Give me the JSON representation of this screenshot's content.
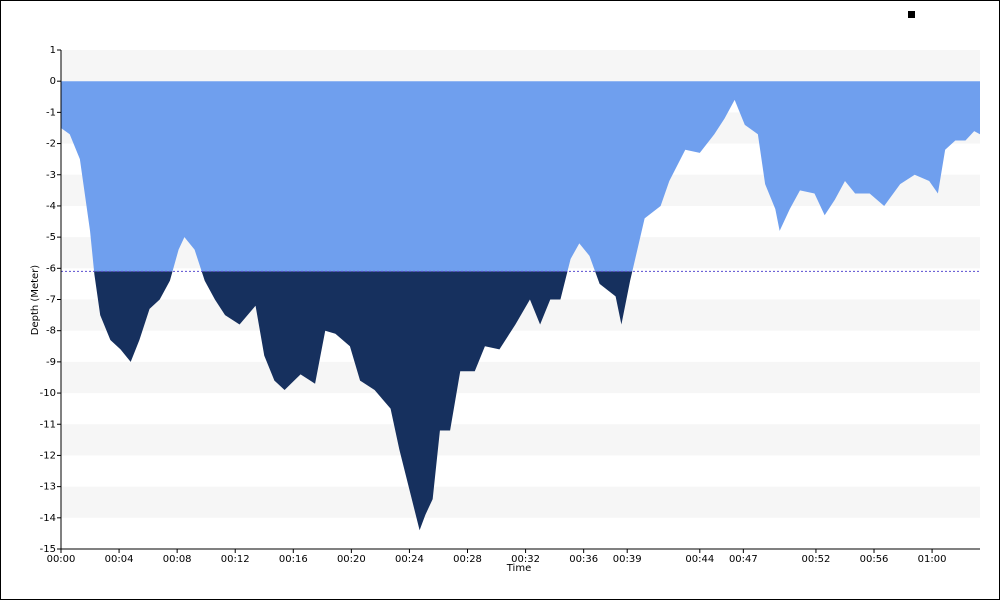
{
  "chart_data": {
    "type": "area",
    "x_label": "Time",
    "y_label": "Depth (Meter)",
    "x": [
      0,
      0.6,
      1.3,
      2.0,
      2.3,
      2.7,
      3.4,
      4.1,
      4.8,
      5.4,
      6.1,
      6.8,
      7.5,
      8.1,
      8.5,
      9.2,
      9.9,
      10.6,
      11.3,
      12.3,
      13.4,
      14.0,
      14.7,
      15.4,
      16.5,
      17.5,
      18.2,
      18.9,
      19.9,
      20.6,
      21.6,
      22.7,
      23.3,
      24.0,
      24.7,
      25.1,
      25.6,
      26.1,
      26.8,
      27.5,
      28.5,
      29.2,
      30.2,
      31.3,
      32.3,
      33.0,
      33.7,
      34.4,
      35.1,
      35.7,
      36.4,
      37.1,
      38.2,
      38.6,
      39.2,
      40.2,
      41.3,
      41.9,
      43.0,
      44.0,
      45.0,
      45.7,
      46.4,
      47.1,
      48.0,
      48.5,
      49.2,
      49.5,
      50.2,
      50.9,
      51.9,
      52.6,
      53.3,
      54.0,
      54.7,
      55.7,
      56.7,
      57.8,
      58.8,
      59.8,
      60.4,
      60.9,
      61.6,
      62.3,
      62.9,
      63.3
    ],
    "y": [
      -1.5,
      -1.7,
      -2.5,
      -4.8,
      -6.2,
      -7.5,
      -8.3,
      -8.6,
      -9.0,
      -8.3,
      -7.3,
      -7.0,
      -6.4,
      -5.4,
      -5.0,
      -5.4,
      -6.4,
      -7.0,
      -7.5,
      -7.8,
      -7.2,
      -8.8,
      -9.6,
      -9.9,
      -9.4,
      -9.7,
      -8.0,
      -8.1,
      -8.5,
      -9.6,
      -9.9,
      -10.5,
      -11.8,
      -13.1,
      -14.4,
      -13.9,
      -13.4,
      -11.2,
      -11.2,
      -9.3,
      -9.3,
      -8.5,
      -8.6,
      -7.8,
      -7.0,
      -7.8,
      -7.0,
      -7.0,
      -5.7,
      -5.2,
      -5.6,
      -6.5,
      -6.9,
      -7.8,
      -6.4,
      -4.4,
      -4.0,
      -3.2,
      -2.2,
      -2.3,
      -1.7,
      -1.2,
      -0.6,
      -1.4,
      -1.7,
      -3.3,
      -4.1,
      -4.8,
      -4.1,
      -3.5,
      -3.6,
      -4.3,
      -3.8,
      -3.2,
      -3.6,
      -3.6,
      -4.0,
      -3.3,
      -3.0,
      -3.2,
      -3.6,
      -2.2,
      -1.9,
      -1.9,
      -1.6,
      -1.7
    ],
    "reference_line": -6.1,
    "colors": {
      "shallow": "#6f9fee",
      "deep": "#16305e",
      "reference": "#5b4fd0"
    },
    "xlim": [
      0,
      63.3
    ],
    "xticks": [
      {
        "value": 0,
        "label": "00:00"
      },
      {
        "value": 4,
        "label": "00:04"
      },
      {
        "value": 8,
        "label": "00:08"
      },
      {
        "value": 12,
        "label": "00:12"
      },
      {
        "value": 16,
        "label": "00:16"
      },
      {
        "value": 20,
        "label": "00:20"
      },
      {
        "value": 24,
        "label": "00:24"
      },
      {
        "value": 28,
        "label": "00:28"
      },
      {
        "value": 32,
        "label": "00:32"
      },
      {
        "value": 36,
        "label": "00:36"
      },
      {
        "value": 39,
        "label": "00:39"
      },
      {
        "value": 44,
        "label": "00:44"
      },
      {
        "value": 47,
        "label": "00:47"
      },
      {
        "value": 52,
        "label": "00:52"
      },
      {
        "value": 56,
        "label": "00:56"
      },
      {
        "value": 60,
        "label": "01:00"
      }
    ],
    "ylim": [
      -15,
      1
    ],
    "yticks": [
      1,
      0,
      -1,
      -2,
      -3,
      -4,
      -5,
      -6,
      -7,
      -8,
      -9,
      -10,
      -11,
      -12,
      -13,
      -14,
      -15
    ],
    "grid": "bands"
  }
}
